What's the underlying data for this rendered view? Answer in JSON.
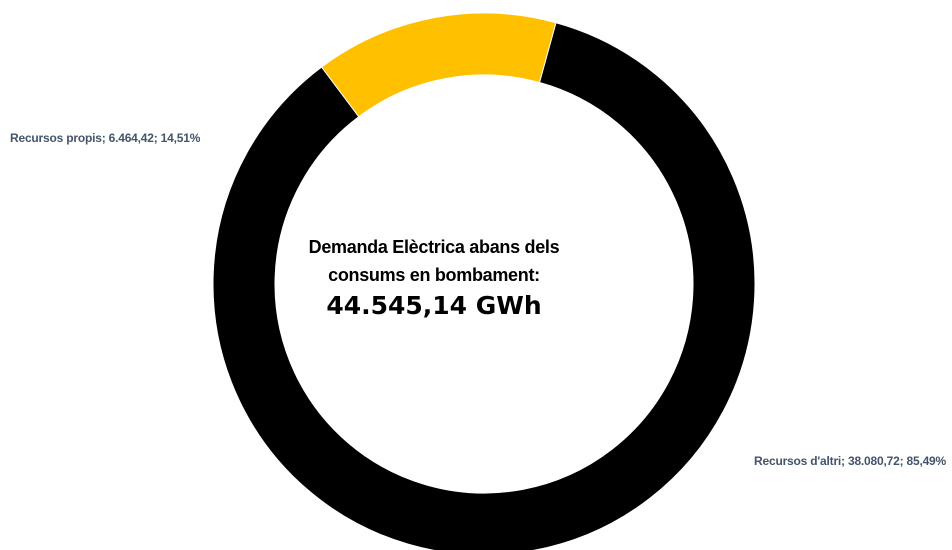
{
  "chart_data": {
    "type": "pie",
    "donut": true,
    "categories": [
      "Recursos propis",
      "Recursos d'altri"
    ],
    "values": [
      6464.42,
      38080.72
    ],
    "percentages": [
      14.51,
      85.49
    ],
    "colors": [
      "#ffc000",
      "#000000"
    ],
    "data_labels": [
      "Recursos propis; 6.464,42; 14,51%",
      "Recursos d'altri; 38.080,72; 85,49%"
    ],
    "center_text": {
      "line1": "Demanda Elèctrica abans dels",
      "line2": "consums en bombament:",
      "total": "44.545,14 GWh"
    },
    "legend": "none"
  }
}
